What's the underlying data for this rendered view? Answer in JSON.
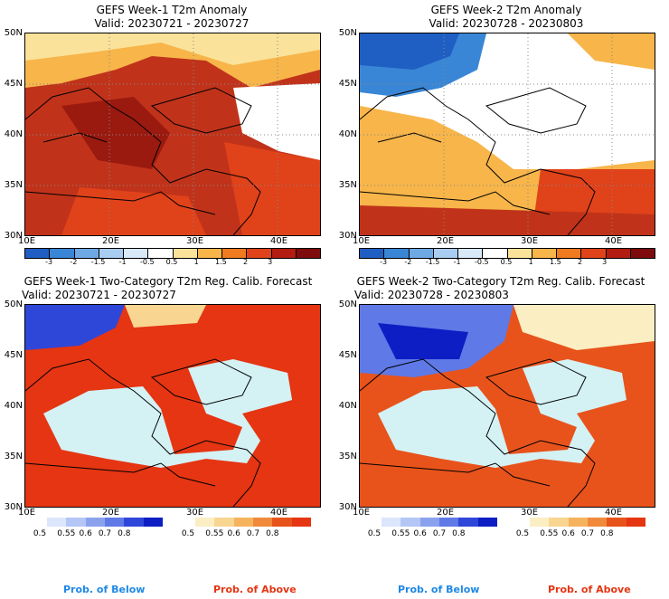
{
  "panels": [
    {
      "title": "GEFS Week-1 T2m Anomaly",
      "valid": "Valid: 20230721 - 20230727"
    },
    {
      "title": "GEFS Week-2 T2m Anomaly",
      "valid": "Valid: 20230728 - 20230803"
    },
    {
      "title": "GEFS Week-1 Two-Category T2m Reg. Calib. Forecast",
      "valid": "Valid: 20230721 - 20230727"
    },
    {
      "title": "GEFS Week-2 Two-Category T2m Reg. Calib. Forecast",
      "valid": "Valid: 20230728 - 20230803"
    }
  ],
  "lat_labels": [
    "50N",
    "45N",
    "40N",
    "35N",
    "30N"
  ],
  "lon_labels": [
    "10E",
    "20E",
    "30E",
    "40E"
  ],
  "anomaly_ticks": [
    "-3",
    "-2",
    "-1.5",
    "-1",
    "-0.5",
    "0.5",
    "1",
    "1.5",
    "2",
    "3"
  ],
  "anomaly_colors": [
    "#1f5fc4",
    "#3a86d6",
    "#6fa9e3",
    "#a9cdf0",
    "#d8e9f8",
    "#ffffff",
    "#fbe29a",
    "#f7b54a",
    "#ef7a1f",
    "#e0421a",
    "#b31c12",
    "#7e0c0c"
  ],
  "prob_ticks": [
    "0.5",
    "0.55",
    "0.6",
    "0.7",
    "0.8"
  ],
  "below_colors": [
    "#dce6fb",
    "#b4c6f6",
    "#8aa2ee",
    "#5f79e6",
    "#2f47d8",
    "#0c1ec4"
  ],
  "above_colors": [
    "#fbeec2",
    "#f9d592",
    "#f6b35e",
    "#f08a3a",
    "#e8531c",
    "#e53512"
  ],
  "legend": {
    "below": "Prob. of Below",
    "above": "Prob. of Above",
    "below_color": "#1e88e5",
    "above_color": "#e53512"
  },
  "colors": {
    "sea_prob": "#d4f1f4",
    "sea_anom": "#ffffff"
  }
}
